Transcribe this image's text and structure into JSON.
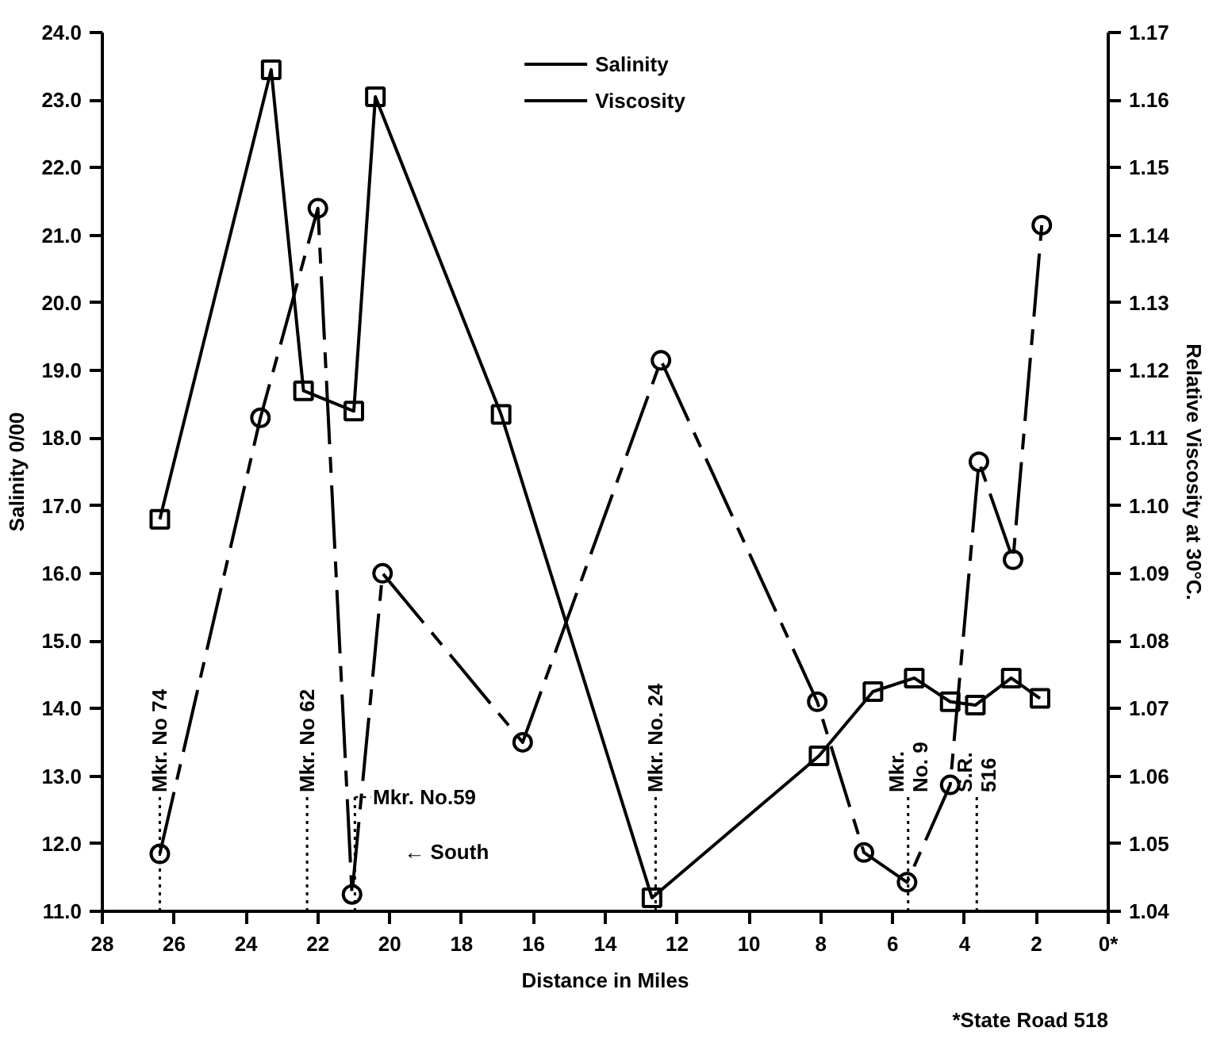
{
  "chart_data": {
    "type": "line",
    "xlabel": "Distance in Miles",
    "ylabel": "Salinity 0/00",
    "y2label": "Relative Viscosity at 30°C.",
    "xlim": [
      28,
      0
    ],
    "ylim": [
      11.0,
      24.0
    ],
    "y2lim": [
      1.04,
      1.17
    ],
    "xticks": [
      28,
      26,
      24,
      22,
      20,
      18,
      16,
      14,
      12,
      10,
      8,
      6,
      4,
      2,
      {
        "value": 0,
        "label": "0*"
      }
    ],
    "yticks": [
      {
        "value": 11,
        "label": "11.0"
      },
      {
        "value": 12,
        "label": "12.0"
      },
      {
        "value": 13,
        "label": "13.0"
      },
      {
        "value": 14,
        "label": "14.0"
      },
      {
        "value": 15,
        "label": "15.0"
      },
      {
        "value": 16,
        "label": "16.0"
      },
      {
        "value": 17,
        "label": "17.0"
      },
      {
        "value": 18,
        "label": "18.0"
      },
      {
        "value": 19,
        "label": "19.0"
      },
      {
        "value": 20,
        "label": "20.0"
      },
      {
        "value": 21,
        "label": "21.0"
      },
      {
        "value": 22,
        "label": "22.0"
      },
      {
        "value": 23,
        "label": "23.0"
      },
      {
        "value": 24,
        "label": "24.0"
      }
    ],
    "y2ticks": [
      1.04,
      1.05,
      1.06,
      1.07,
      1.08,
      1.09,
      {
        "value": 1.1,
        "label": "1.10"
      },
      1.11,
      1.12,
      1.13,
      1.14,
      1.15,
      1.16,
      1.17
    ],
    "grid": false,
    "legend": "top",
    "series": [
      {
        "name": "Salinity",
        "color": "#000000",
        "marker": "square",
        "line_style": "solid",
        "x": [
          26.4,
          23.3,
          22.4,
          21.0,
          20.4,
          16.9,
          12.7,
          8.05,
          6.55,
          5.4,
          4.4,
          3.7,
          2.7,
          1.9
        ],
        "values": [
          16.8,
          23.45,
          18.7,
          18.4,
          23.05,
          18.35,
          11.2,
          13.3,
          14.25,
          14.45,
          14.1,
          14.05,
          14.45,
          14.15
        ]
      },
      {
        "name": "Viscosity",
        "color": "#000000",
        "marker": "circle",
        "line_style": "dashed",
        "axis": "y2",
        "x": [
          26.4,
          23.6,
          22.0,
          21.05,
          20.2,
          16.3,
          12.45,
          8.1,
          6.8,
          5.6,
          4.4,
          3.6,
          2.65,
          1.85
        ],
        "values": [
          1.0485,
          1.113,
          1.144,
          1.0425,
          1.09,
          1.065,
          1.1215,
          1.071,
          1.0487,
          1.0443,
          1.0587,
          1.1065,
          1.092,
          1.1415
        ]
      }
    ],
    "ref_lines": [
      {
        "axis": "x",
        "value": 26.4,
        "label": "Mkr. No 74",
        "line_style": "dotted"
      },
      {
        "axis": "x",
        "value": 22.3,
        "label": "Mkr. No 62",
        "line_style": "dotted"
      },
      {
        "axis": "x",
        "value": 20.97,
        "label": "Mkr. No.59",
        "line_style": "dotted"
      },
      {
        "axis": "x",
        "value": 12.6,
        "label": "Mkr. No. 24",
        "line_style": "dotted"
      },
      {
        "axis": "x",
        "value": 5.57,
        "label": "Mkr.\nNo. 9",
        "line_style": "dotted"
      },
      {
        "axis": "x",
        "value": 3.66,
        "label": "S.R.\n516",
        "line_style": "dotted"
      }
    ],
    "annotations": [
      "← South",
      "*State Road 518"
    ]
  }
}
